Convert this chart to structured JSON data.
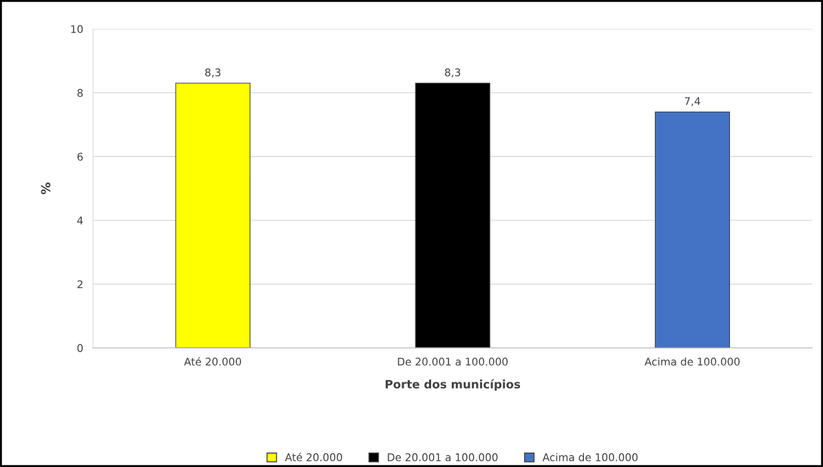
{
  "chart_data": {
    "type": "bar",
    "xlabel": "Porte dos municípios",
    "ylabel": "%",
    "categories": [
      "Até 20.000",
      "De 20.001 a 100.000",
      "Acima de 100.000"
    ],
    "series": [
      {
        "name": "Até 20.000",
        "color": "#ffff00",
        "values": [
          8.3,
          null,
          null
        ],
        "value_labels": [
          "8,3",
          null,
          null
        ]
      },
      {
        "name": "De 20.001 a 100.000",
        "color": "#000000",
        "values": [
          null,
          8.3,
          null
        ],
        "value_labels": [
          null,
          "8,3",
          null
        ]
      },
      {
        "name": "Acima de 100.000",
        "color": "#4472c4",
        "values": [
          null,
          null,
          7.4
        ],
        "value_labels": [
          null,
          null,
          "7,4"
        ]
      }
    ],
    "ylim": [
      0,
      10
    ],
    "yticks": [
      0,
      2,
      4,
      6,
      8,
      10
    ],
    "grid": "y",
    "legend": "bottom"
  }
}
